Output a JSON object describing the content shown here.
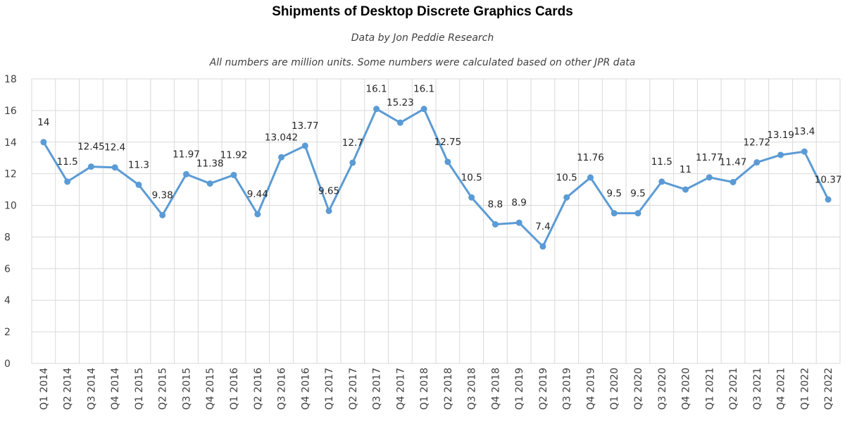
{
  "chart_data": {
    "type": "line",
    "title": "Shipments of Desktop Discrete Graphics Cards",
    "subtitles": [
      "Data by Jon Peddie Research",
      "All numbers are million units. Some numbers were calculated based on other JPR data"
    ],
    "xlabel": "",
    "ylabel": "",
    "ylim": [
      0,
      18
    ],
    "yticks": [
      "0",
      "2",
      "4",
      "6",
      "8",
      "10",
      "12",
      "14",
      "16",
      "18"
    ],
    "grid": true,
    "categories": [
      "Q1 2014",
      "Q2 2014",
      "Q3 2014",
      "Q4 2014",
      "Q1 2015",
      "Q2 2015",
      "Q3 2015",
      "Q4 2015",
      "Q1 2016",
      "Q2 2016",
      "Q3 2016",
      "Q4 2016",
      "Q1 2017",
      "Q2 2017",
      "Q3 2017",
      "Q4 2017",
      "Q1 2018",
      "Q2 2018",
      "Q3 2018",
      "Q4 2018",
      "Q1 2019",
      "Q2 2019",
      "Q3 2019",
      "Q4 2019",
      "Q1 2020",
      "Q2 2020",
      "Q3 2020",
      "Q4 2020",
      "Q1 2021",
      "Q2 2021",
      "Q3 2021",
      "Q4 2021",
      "Q1 2022",
      "Q2 2022"
    ],
    "values": [
      14,
      11.5,
      12.45,
      12.4,
      11.3,
      9.38,
      11.97,
      11.38,
      11.92,
      9.44,
      13.042,
      13.77,
      9.65,
      12.7,
      16.1,
      15.23,
      16.1,
      12.75,
      10.5,
      8.8,
      8.9,
      7.4,
      10.5,
      11.76,
      9.5,
      9.5,
      11.5,
      11,
      11.77,
      11.47,
      12.72,
      13.19,
      13.4,
      10.37
    ],
    "data_labels": [
      "14",
      "11.5",
      "12.45",
      "12.4",
      "11.3",
      "9.38",
      "11.97",
      "11.38",
      "11.92",
      "9.44",
      "13.042",
      "13.77",
      "9.65",
      "12.7",
      "16.1",
      "15.23",
      "16.1",
      "12.75",
      "10.5",
      "8.8",
      "8.9",
      "7.4",
      "10.5",
      "11.76",
      "9.5",
      "9.5",
      "11.5",
      "11",
      "11.77",
      "11.47",
      "12.72",
      "13.19",
      "13.4",
      "10.37"
    ],
    "colors": {
      "line": "#5b9bd5",
      "grid": "#d9d9d9",
      "axis_text": "#404040"
    }
  }
}
